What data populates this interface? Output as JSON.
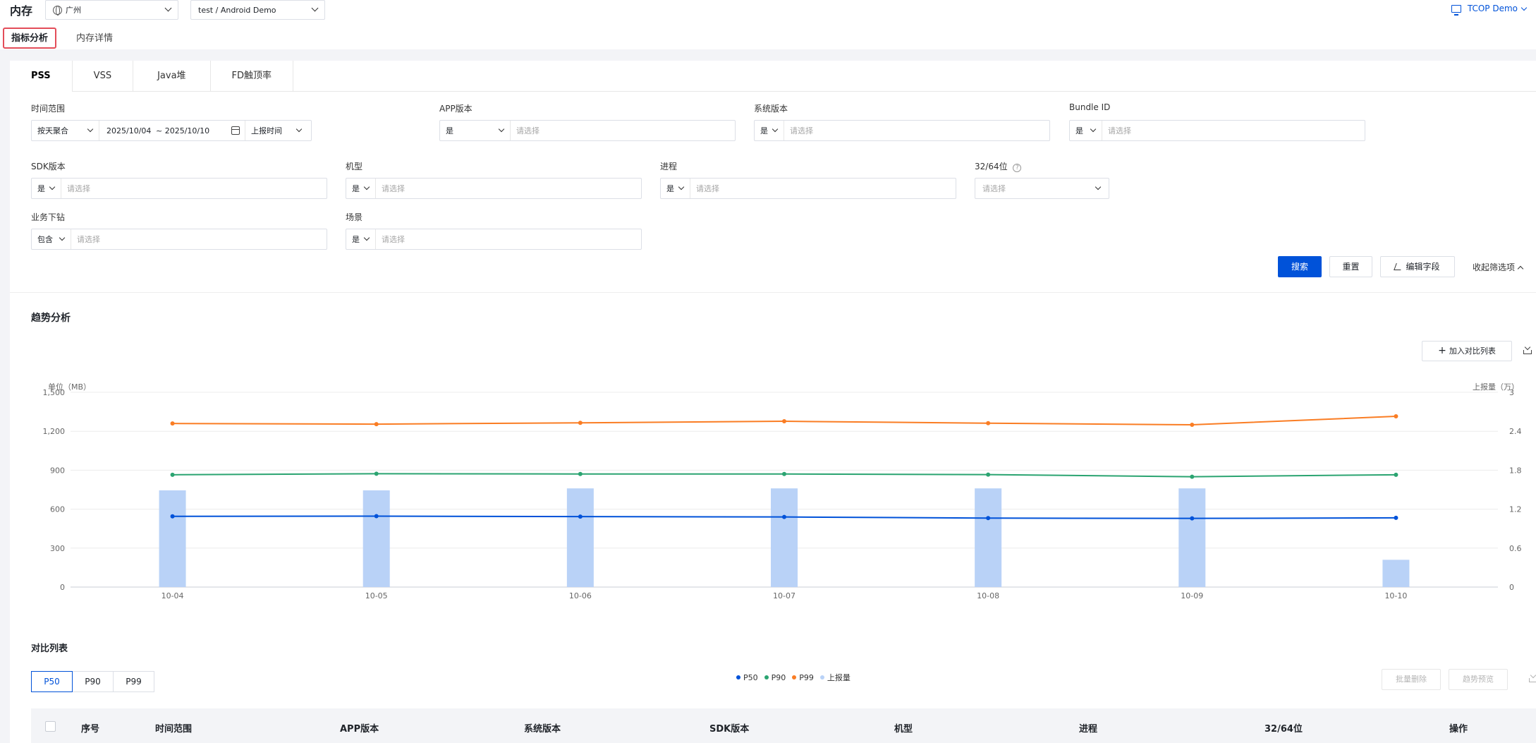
{
  "header": {
    "title": "内存",
    "region": "广州",
    "project": "test / Android Demo",
    "user": "TCOP Demo"
  },
  "page_tabs": [
    "指标分析",
    "内存详情"
  ],
  "metric_tabs": [
    "PSS",
    "VSS",
    "Java堆",
    "FD触顶率"
  ],
  "filters": {
    "time_range": {
      "label": "时间范围",
      "agg": "按天聚合",
      "start": "2025/10/04",
      "end": "~ 2025/10/10",
      "time_type": "上报时间"
    },
    "app_version": {
      "label": "APP版本",
      "op": "是",
      "placeholder": "请选择"
    },
    "os_version": {
      "label": "系统版本",
      "op": "是",
      "placeholder": "请选择"
    },
    "bundle_id": {
      "label": "Bundle ID",
      "op": "是",
      "placeholder": "请选择"
    },
    "sdk_version": {
      "label": "SDK版本",
      "op": "是",
      "placeholder": "请选择"
    },
    "model": {
      "label": "机型",
      "op": "是",
      "placeholder": "请选择"
    },
    "process": {
      "label": "进程",
      "op": "是",
      "placeholder": "请选择"
    },
    "arch": {
      "label": "32/64位",
      "help": "?",
      "placeholder": "请选择"
    },
    "biz_tag": {
      "label": "业务下钻",
      "op": "包含",
      "placeholder": "请选择"
    },
    "scene": {
      "label": "场景",
      "op": "是",
      "placeholder": "请选择"
    }
  },
  "actions": {
    "search": "搜索",
    "reset": "重置",
    "edit_fields": "编辑字段",
    "collapse": "收起筛选项"
  },
  "trend": {
    "title": "趋势分析",
    "add_compare": "加入对比列表"
  },
  "chart_data": {
    "type": "line",
    "categories": [
      "10-04",
      "10-05",
      "10-06",
      "10-07",
      "10-08",
      "10-09",
      "10-10"
    ],
    "series": [
      {
        "name": "P50",
        "type": "line",
        "axis": "left",
        "color": "#0052d9",
        "values": [
          545,
          546,
          543,
          540,
          531,
          529,
          533
        ]
      },
      {
        "name": "P90",
        "type": "line",
        "axis": "left",
        "color": "#2ba471",
        "values": [
          865,
          873,
          871,
          871,
          866,
          850,
          865
        ]
      },
      {
        "name": "P99",
        "type": "line",
        "axis": "left",
        "color": "#fa7d24",
        "values": [
          1260,
          1255,
          1265,
          1277,
          1262,
          1250,
          1315
        ]
      },
      {
        "name": "上报量",
        "type": "bar",
        "axis": "right",
        "color": "#b9d2f7",
        "values": [
          1.49,
          1.49,
          1.52,
          1.52,
          1.52,
          1.52,
          0.42
        ]
      }
    ],
    "ylabel": "单位（MB）",
    "y2label": "上报量（万）",
    "ylim": [
      0,
      1500
    ],
    "yticks": [
      "0",
      "300",
      "600",
      "900",
      "1,200",
      "1,500"
    ],
    "y2lim": [
      0,
      3
    ],
    "y2ticks": [
      "0",
      "0.6",
      "1.2",
      "1.8",
      "2.4",
      "3"
    ],
    "grid": true,
    "legend": "bottom-center"
  },
  "compare": {
    "title": "对比列表",
    "tabs": [
      "P50",
      "P90",
      "P99"
    ],
    "batch_delete": "批量删除",
    "trend_preview": "趋势预览",
    "columns": [
      "序号",
      "时间范围",
      "APP版本",
      "系统版本",
      "SDK版本",
      "机型",
      "进程",
      "32/64位",
      "操作"
    ]
  }
}
